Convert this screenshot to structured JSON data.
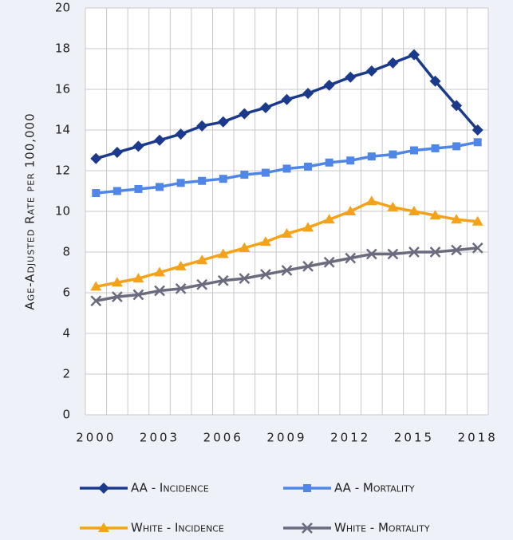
{
  "chart_data": {
    "type": "line",
    "y_label": "Age-Adjusted Rate per 100,000",
    "categories": [
      "2000",
      null,
      null,
      "2003",
      null,
      null,
      "2006",
      null,
      null,
      "2009",
      null,
      null,
      "2012",
      null,
      null,
      "2015",
      null,
      null,
      "2018"
    ],
    "series": [
      {
        "name": "AA - Incidence",
        "color": "#1b3a8c",
        "marker": "diamond",
        "values": [
          12.6,
          12.9,
          13.2,
          13.5,
          13.8,
          14.2,
          14.4,
          14.8,
          15.1,
          15.5,
          15.8,
          16.2,
          16.6,
          16.9,
          17.3,
          17.7,
          16.4,
          15.2,
          14.0
        ]
      },
      {
        "name": "AA - Mortality",
        "color": "#4f86e8",
        "marker": "square",
        "values": [
          10.9,
          11.0,
          11.1,
          11.2,
          11.4,
          11.5,
          11.6,
          11.8,
          11.9,
          12.1,
          12.2,
          12.4,
          12.5,
          12.7,
          12.8,
          13.0,
          13.1,
          13.2,
          13.4
        ]
      },
      {
        "name": "White - Incidence",
        "color": "#f5a21b",
        "marker": "triangle",
        "values": [
          6.3,
          6.5,
          6.7,
          7.0,
          7.3,
          7.6,
          7.9,
          8.2,
          8.5,
          8.9,
          9.2,
          9.6,
          10.0,
          10.5,
          10.2,
          10.0,
          9.8,
          9.6,
          9.5
        ]
      },
      {
        "name": "White - Mortality",
        "color": "#6b6b80",
        "marker": "x",
        "values": [
          5.6,
          5.8,
          5.9,
          6.1,
          6.2,
          6.4,
          6.6,
          6.7,
          6.9,
          7.1,
          7.3,
          7.5,
          7.7,
          7.9,
          7.9,
          8.0,
          8.0,
          8.1,
          8.2
        ]
      }
    ],
    "ylim": [
      0,
      20
    ],
    "yticks": [
      0,
      2,
      4,
      6,
      8,
      10,
      12,
      14,
      16,
      18,
      20
    ],
    "grid": true,
    "legend": "bottom"
  }
}
